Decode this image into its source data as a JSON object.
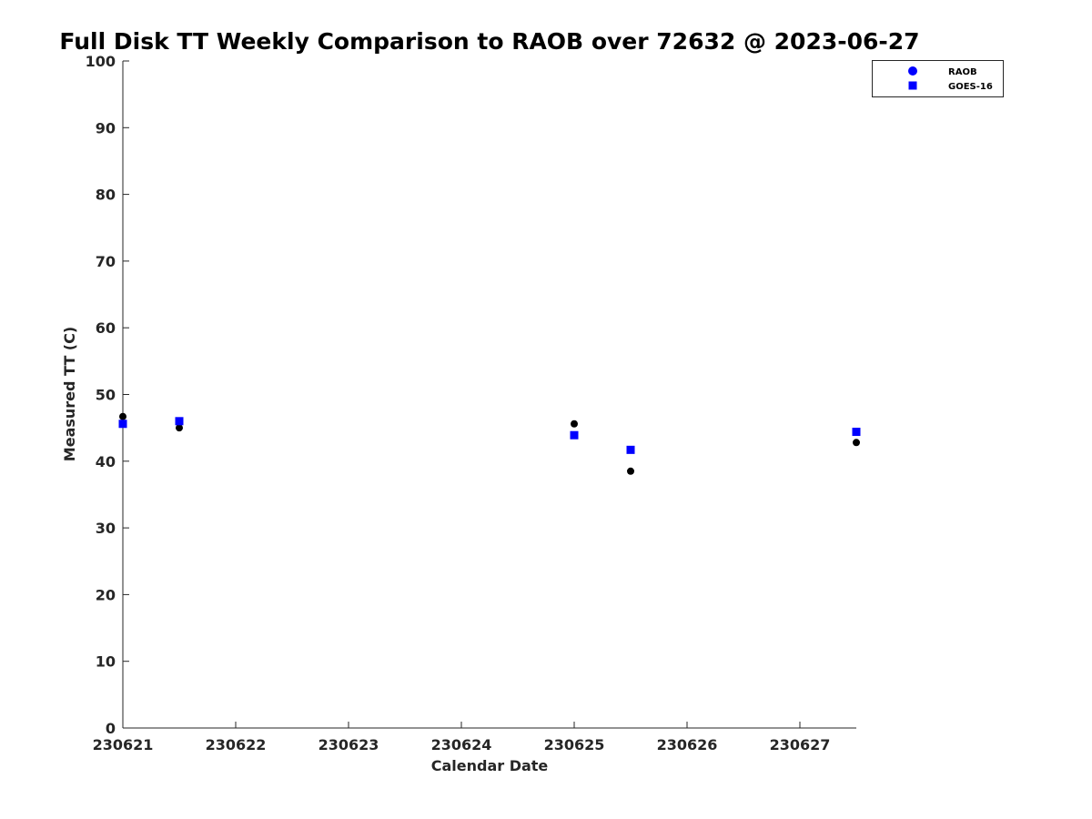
{
  "chart_data": {
    "type": "scatter",
    "title": "Full Disk TT Weekly Comparison to RAOB over 72632 @ 2023-06-27",
    "xlabel": "Calendar Date",
    "ylabel": "Measured TT (C)",
    "xlim": [
      0,
      6.5
    ],
    "ylim": [
      0,
      100
    ],
    "xticks": [
      {
        "value": 0,
        "label": "230621"
      },
      {
        "value": 1,
        "label": "230622"
      },
      {
        "value": 2,
        "label": "230623"
      },
      {
        "value": 3,
        "label": "230624"
      },
      {
        "value": 4,
        "label": "230625"
      },
      {
        "value": 5,
        "label": "230626"
      },
      {
        "value": 6,
        "label": "230627"
      }
    ],
    "yticks": [
      0,
      10,
      20,
      30,
      40,
      50,
      60,
      70,
      80,
      90,
      100
    ],
    "legend_position": "top-right",
    "series": [
      {
        "name": "RAOB",
        "marker": "circle",
        "color": "#000000",
        "legend_color": "#0000ff",
        "x": [
          0,
          0.5,
          4,
          4.5,
          6.5
        ],
        "y": [
          46.7,
          45.0,
          45.6,
          38.5,
          42.8
        ]
      },
      {
        "name": "GOES-16",
        "marker": "square",
        "color": "#0000ff",
        "legend_color": "#0000ff",
        "x": [
          0,
          0.5,
          4,
          4.5,
          6.5
        ],
        "y": [
          45.6,
          46.0,
          43.9,
          41.7,
          44.4
        ]
      }
    ]
  }
}
